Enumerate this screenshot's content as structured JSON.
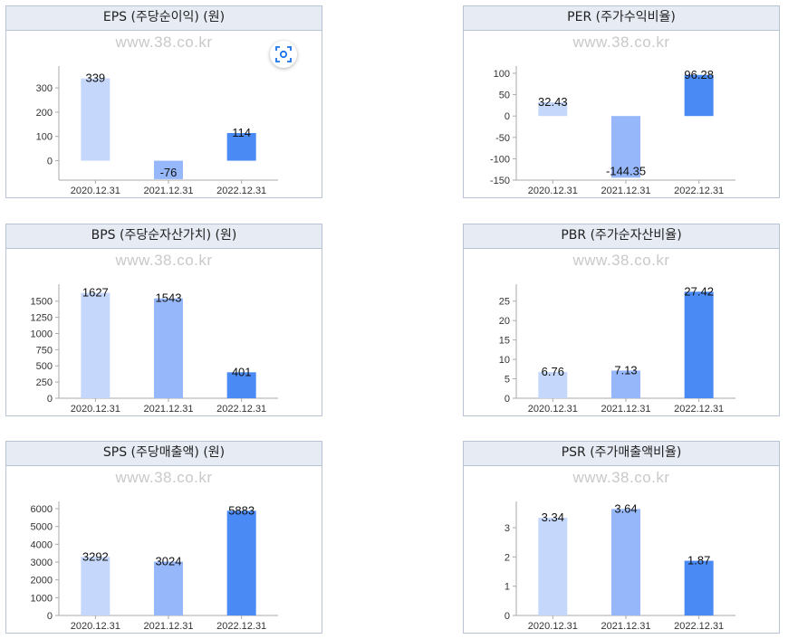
{
  "watermark": "www.38.co.kr",
  "colors": {
    "bar_2020": "#c5d8fb",
    "bar_2021": "#96b8fb",
    "bar_2022": "#4a8af4",
    "axis": "#aaaaaa",
    "header_bg": "#e6ebf4"
  },
  "icons": {
    "lens_button": "lens-icon"
  },
  "chart_data": [
    {
      "type": "bar",
      "title": "EPS (주당순이익) (원)",
      "categories": [
        "2020.12.31",
        "2021.12.31",
        "2022.12.31"
      ],
      "values": [
        339,
        -76,
        114
      ],
      "labels": [
        "339",
        "-76",
        "114"
      ],
      "ylim": [
        -80,
        360
      ],
      "yticks": [
        0,
        100,
        200,
        300
      ],
      "grid": false
    },
    {
      "type": "bar",
      "title": "PER (주가수익비율)",
      "categories": [
        "2020.12.31",
        "2021.12.31",
        "2022.12.31"
      ],
      "values": [
        32.43,
        -144.35,
        96.28
      ],
      "labels": [
        "32.43",
        "-144.35",
        "96.28"
      ],
      "ylim": [
        -150,
        100
      ],
      "yticks": [
        -150,
        -100,
        -50,
        0,
        50,
        100
      ],
      "grid": false
    },
    {
      "type": "bar",
      "title": "BPS (주당순자산가치) (원)",
      "categories": [
        "2020.12.31",
        "2021.12.31",
        "2022.12.31"
      ],
      "values": [
        1627,
        1543,
        401
      ],
      "labels": [
        "1627",
        "1543",
        "401"
      ],
      "ylim": [
        0,
        1650
      ],
      "yticks": [
        0,
        250,
        500,
        750,
        1000,
        1250,
        1500
      ],
      "grid": false
    },
    {
      "type": "bar",
      "title": "PBR (주가순자산비율)",
      "categories": [
        "2020.12.31",
        "2021.12.31",
        "2022.12.31"
      ],
      "values": [
        6.76,
        7.13,
        27.42
      ],
      "labels": [
        "6.76",
        "7.13",
        "27.42"
      ],
      "ylim": [
        0,
        27.5
      ],
      "yticks": [
        0,
        5,
        10,
        15,
        20,
        25
      ],
      "grid": false
    },
    {
      "type": "bar",
      "title": "SPS (주당매출액) (원)",
      "categories": [
        "2020.12.31",
        "2021.12.31",
        "2022.12.31"
      ],
      "values": [
        3292,
        3024,
        5883
      ],
      "labels": [
        "3292",
        "3024",
        "5883"
      ],
      "ylim": [
        0,
        6000
      ],
      "yticks": [
        0,
        1000,
        2000,
        3000,
        4000,
        5000,
        6000
      ],
      "grid": false
    },
    {
      "type": "bar",
      "title": "PSR (주가매출액비율)",
      "categories": [
        "2020.12.31",
        "2021.12.31",
        "2022.12.31"
      ],
      "values": [
        3.34,
        3.64,
        1.87
      ],
      "labels": [
        "3.34",
        "3.64",
        "1.87"
      ],
      "ylim": [
        0,
        3.65
      ],
      "yticks": [
        0,
        1,
        2,
        3
      ],
      "grid": false
    }
  ]
}
